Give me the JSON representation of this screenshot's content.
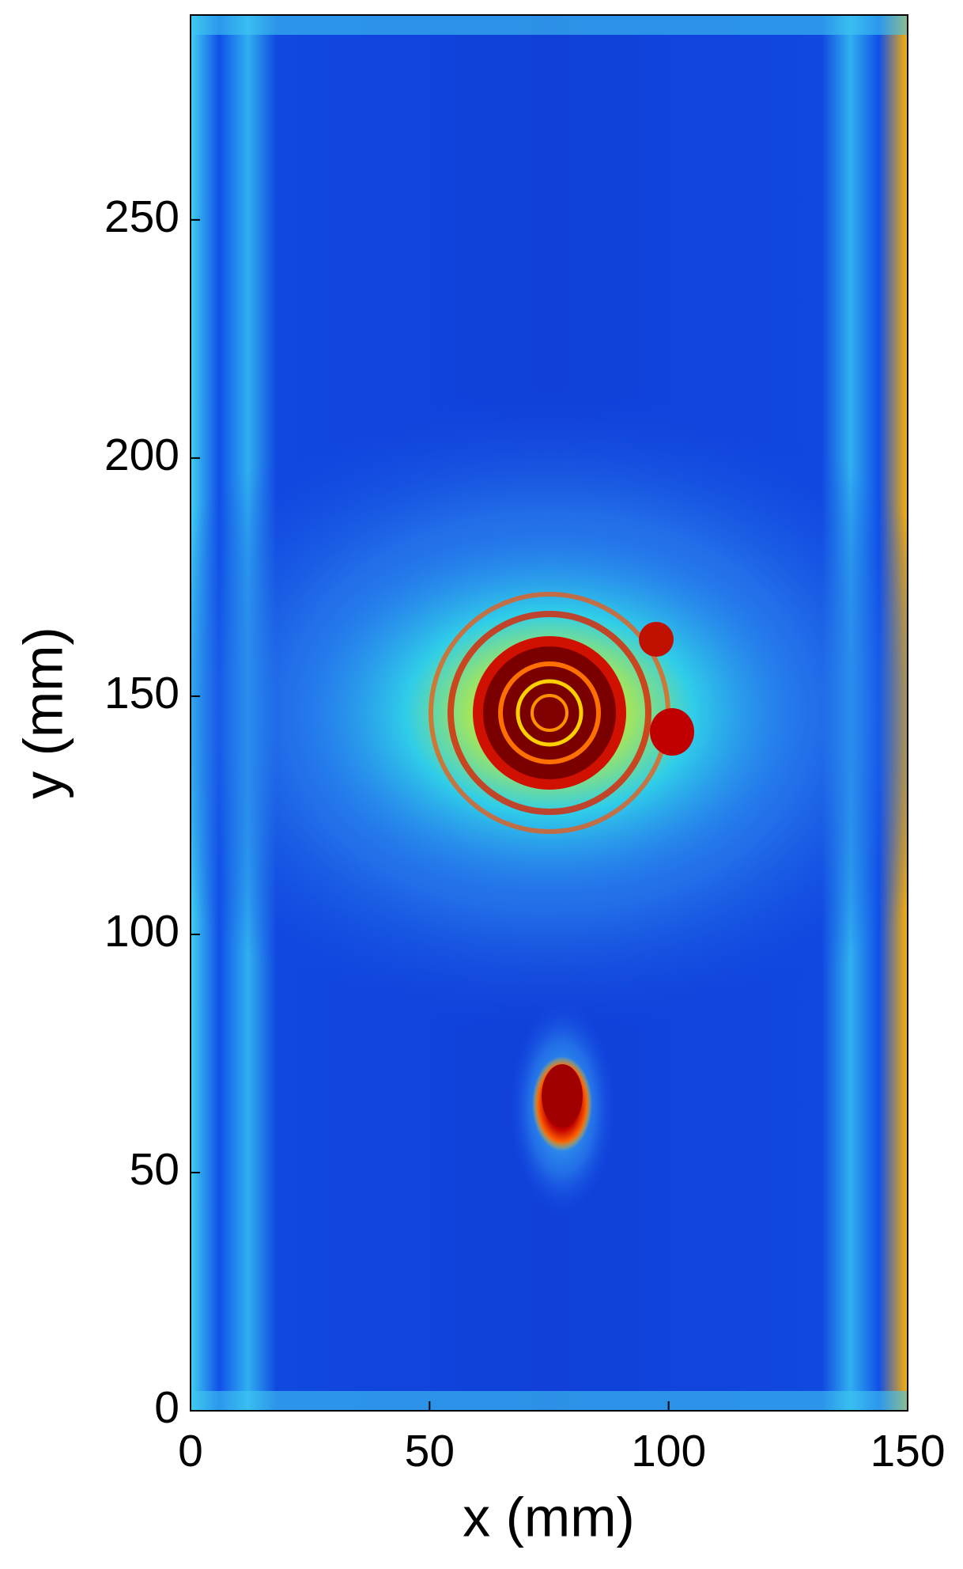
{
  "chart_data": {
    "type": "heatmap",
    "xlabel": "x (mm)",
    "ylabel": "y (mm)",
    "xlim": [
      0,
      150
    ],
    "xticks": [
      0,
      50,
      100,
      150
    ],
    "ylim": [
      0,
      293
    ],
    "yticks": [
      0,
      50,
      100,
      150,
      200,
      250
    ]
  }
}
